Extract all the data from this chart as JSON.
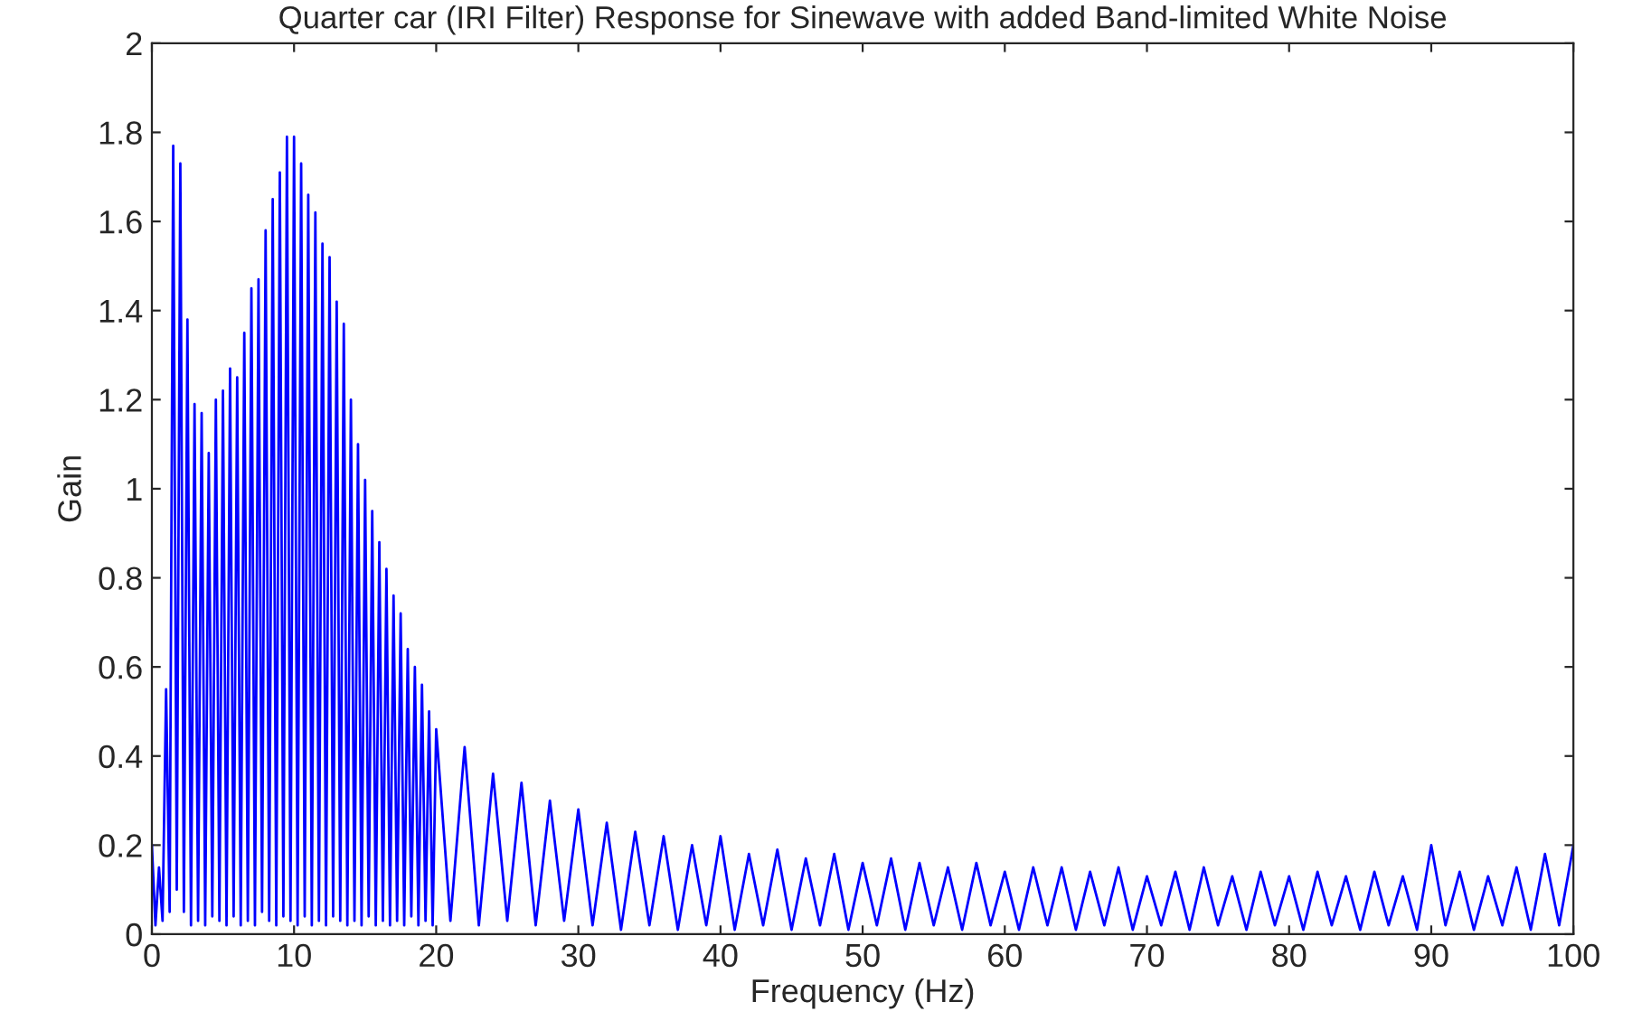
{
  "chart_data": {
    "type": "line",
    "title": "Quarter car (IRI Filter) Response for Sinewave with added Band-limited White Noise",
    "xlabel": "Frequency (Hz)",
    "ylabel": "Gain",
    "x": [
      0,
      0.25,
      0.5,
      0.75,
      1.0,
      1.25,
      1.5,
      1.75,
      2.0,
      2.25,
      2.5,
      2.75,
      3.0,
      3.25,
      3.5,
      3.75,
      4.0,
      4.25,
      4.5,
      4.75,
      5.0,
      5.25,
      5.5,
      5.75,
      6.0,
      6.25,
      6.5,
      6.75,
      7.0,
      7.25,
      7.5,
      7.75,
      8.0,
      8.25,
      8.5,
      8.75,
      9.0,
      9.25,
      9.5,
      9.75,
      10.0,
      10.25,
      10.5,
      10.75,
      11.0,
      11.25,
      11.5,
      11.75,
      12.0,
      12.25,
      12.5,
      12.75,
      13.0,
      13.25,
      13.5,
      13.75,
      14.0,
      14.25,
      14.5,
      14.75,
      15.0,
      15.25,
      15.5,
      15.75,
      16.0,
      16.25,
      16.5,
      16.75,
      17.0,
      17.25,
      17.5,
      17.75,
      18.0,
      18.25,
      18.5,
      18.75,
      19.0,
      19.25,
      19.5,
      19.75,
      20.0,
      21,
      22,
      23,
      24,
      25,
      26,
      27,
      28,
      29,
      30,
      31,
      32,
      33,
      34,
      35,
      36,
      37,
      38,
      39,
      40,
      41,
      42,
      43,
      44,
      45,
      46,
      47,
      48,
      49,
      50,
      51,
      52,
      53,
      54,
      55,
      56,
      57,
      58,
      59,
      60,
      61,
      62,
      63,
      64,
      65,
      66,
      67,
      68,
      69,
      70,
      71,
      72,
      73,
      74,
      75,
      76,
      77,
      78,
      79,
      80,
      81,
      82,
      83,
      84,
      85,
      86,
      87,
      88,
      89,
      90,
      91,
      92,
      93,
      94,
      95,
      96,
      97,
      98,
      99,
      100
    ],
    "series": [
      {
        "color": "#0000ff",
        "values": [
          0.2,
          0.02,
          0.15,
          0.03,
          0.55,
          0.05,
          1.77,
          0.1,
          1.73,
          0.05,
          1.38,
          0.02,
          1.19,
          0.03,
          1.17,
          0.02,
          1.08,
          0.04,
          1.2,
          0.03,
          1.22,
          0.02,
          1.27,
          0.04,
          1.25,
          0.02,
          1.35,
          0.03,
          1.45,
          0.02,
          1.47,
          0.05,
          1.58,
          0.03,
          1.65,
          0.02,
          1.71,
          0.04,
          1.79,
          0.03,
          1.79,
          0.02,
          1.73,
          0.04,
          1.66,
          0.02,
          1.62,
          0.03,
          1.55,
          0.02,
          1.52,
          0.04,
          1.42,
          0.03,
          1.37,
          0.02,
          1.2,
          0.03,
          1.1,
          0.02,
          1.02,
          0.04,
          0.95,
          0.02,
          0.88,
          0.03,
          0.82,
          0.02,
          0.76,
          0.03,
          0.72,
          0.02,
          0.64,
          0.04,
          0.6,
          0.02,
          0.56,
          0.03,
          0.5,
          0.02,
          0.46,
          0.03,
          0.42,
          0.02,
          0.36,
          0.03,
          0.34,
          0.02,
          0.3,
          0.03,
          0.28,
          0.02,
          0.25,
          0.01,
          0.23,
          0.02,
          0.22,
          0.01,
          0.2,
          0.02,
          0.22,
          0.01,
          0.18,
          0.02,
          0.19,
          0.01,
          0.17,
          0.02,
          0.18,
          0.01,
          0.16,
          0.02,
          0.17,
          0.01,
          0.16,
          0.02,
          0.15,
          0.01,
          0.16,
          0.02,
          0.14,
          0.01,
          0.15,
          0.02,
          0.15,
          0.01,
          0.14,
          0.02,
          0.15,
          0.01,
          0.13,
          0.02,
          0.14,
          0.01,
          0.15,
          0.02,
          0.13,
          0.01,
          0.14,
          0.02,
          0.13,
          0.01,
          0.14,
          0.02,
          0.13,
          0.01,
          0.14,
          0.02,
          0.13,
          0.01,
          0.2,
          0.02,
          0.14,
          0.01,
          0.13,
          0.02,
          0.15,
          0.01,
          0.18,
          0.02,
          0.2
        ]
      }
    ],
    "xlim": [
      0,
      100
    ],
    "xticks": [
      0,
      10,
      20,
      30,
      40,
      50,
      60,
      70,
      80,
      90,
      100
    ],
    "ylim": [
      0,
      2
    ],
    "yticks": [
      0,
      0.2,
      0.4,
      0.6,
      0.8,
      1,
      1.2,
      1.4,
      1.6,
      1.8,
      2
    ],
    "grid": false,
    "legend": false
  }
}
